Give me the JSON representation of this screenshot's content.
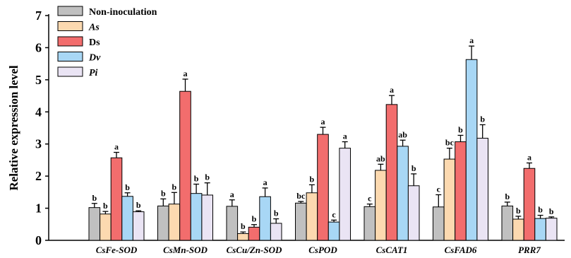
{
  "chart_data": {
    "type": "bar",
    "ylabel": "Relative expression level",
    "ylim": [
      0,
      7
    ],
    "yticks": [
      0,
      1,
      2,
      3,
      4,
      5,
      6,
      7
    ],
    "legend_position": "top-left",
    "categories": [
      "CsFe-SOD",
      "CsMn-SOD",
      "CsCu/Zn-SOD",
      "CsPOD",
      "CsCAT1",
      "CsFAD6",
      "PRR7"
    ],
    "series": [
      {
        "name": "Non-inoculation",
        "italic": false,
        "color": "#c0c0c0",
        "values": [
          1.02,
          1.07,
          1.06,
          1.16,
          1.05,
          1.04,
          1.07
        ],
        "errors": [
          0.13,
          0.22,
          0.2,
          0.05,
          0.08,
          0.38,
          0.12
        ],
        "letters": [
          "b",
          "b",
          "a",
          "bc",
          "c",
          "c",
          "b"
        ]
      },
      {
        "name": "As",
        "italic": true,
        "color": "#fcd9b0",
        "values": [
          0.82,
          1.13,
          0.21,
          1.48,
          2.18,
          2.53,
          0.66
        ],
        "errors": [
          0.08,
          0.36,
          0.05,
          0.25,
          0.19,
          0.34,
          0.09
        ],
        "letters": [
          "b",
          "b",
          "b",
          "b",
          "ab",
          "bc",
          "b"
        ]
      },
      {
        "name": "Ds",
        "italic": false,
        "color": "#f26d6d",
        "values": [
          2.57,
          4.64,
          0.41,
          3.3,
          4.23,
          3.07,
          2.24
        ],
        "errors": [
          0.17,
          0.38,
          0.08,
          0.22,
          0.28,
          0.2,
          0.17
        ],
        "letters": [
          "a",
          "a",
          "b",
          "a",
          "a",
          "b",
          "a"
        ]
      },
      {
        "name": "Dv",
        "italic": true,
        "color": "#a8d7f5",
        "values": [
          1.37,
          1.46,
          1.36,
          0.57,
          2.93,
          5.63,
          0.68
        ],
        "errors": [
          0.11,
          0.29,
          0.27,
          0.06,
          0.19,
          0.42,
          0.1
        ],
        "letters": [
          "b",
          "b",
          "a",
          "c",
          "ab",
          "a",
          "b"
        ]
      },
      {
        "name": "Pi",
        "italic": true,
        "color": "#eae4f4",
        "values": [
          0.89,
          1.41,
          0.53,
          2.87,
          1.7,
          3.18,
          0.69
        ],
        "errors": [
          0.03,
          0.38,
          0.14,
          0.2,
          0.37,
          0.42,
          0.04
        ],
        "letters": [
          "b",
          "b",
          "b",
          "a",
          "b",
          "b",
          "b"
        ]
      }
    ]
  }
}
